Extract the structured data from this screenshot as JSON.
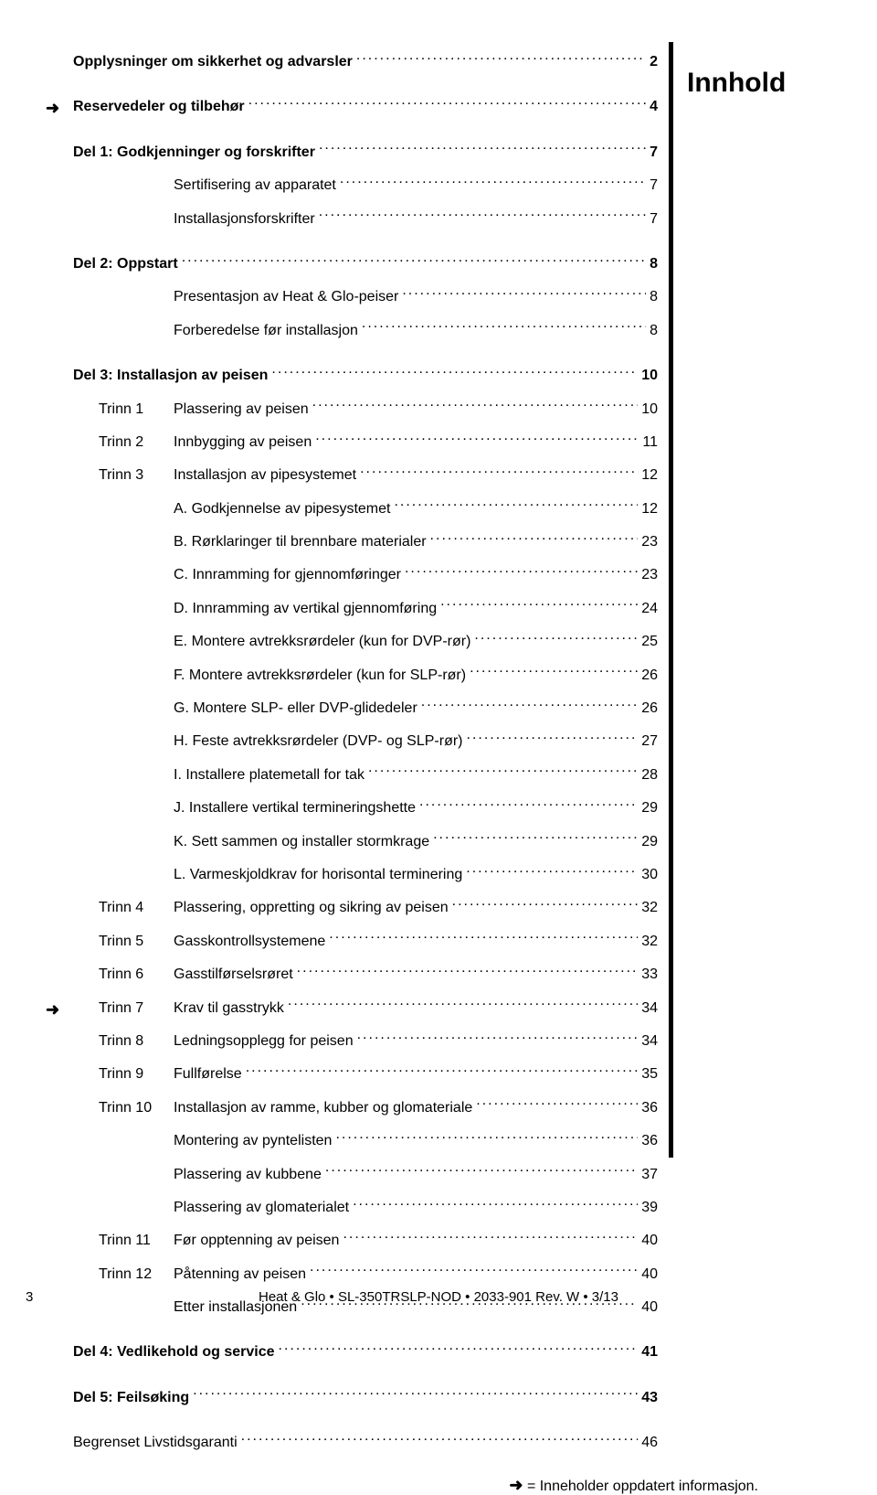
{
  "section_heading": "Innhold",
  "arrow_glyph": "➜",
  "toc": [
    {
      "type": "entry",
      "label": "Opplysninger om sikkerhet og advarsler",
      "page": "2",
      "bold": true,
      "arrow": false,
      "prefix": ""
    },
    {
      "type": "gap"
    },
    {
      "type": "entry",
      "label": "Reservedeler og tilbehør",
      "page": "4",
      "bold": true,
      "arrow": true,
      "prefix": ""
    },
    {
      "type": "gap"
    },
    {
      "type": "entry",
      "label": "Del 1: Godkjenninger og forskrifter",
      "page": "7",
      "bold": true,
      "arrow": false,
      "prefix": ""
    },
    {
      "type": "entry",
      "label": "Sertifisering av apparatet",
      "page": "7",
      "bold": false,
      "arrow": false,
      "prefix": "",
      "indent": true
    },
    {
      "type": "entry",
      "label": "Installasjonsforskrifter",
      "page": "7",
      "bold": false,
      "arrow": false,
      "prefix": "",
      "indent": true
    },
    {
      "type": "gap"
    },
    {
      "type": "entry",
      "label": "Del 2: Oppstart",
      "page": "8",
      "bold": true,
      "arrow": false,
      "prefix": ""
    },
    {
      "type": "entry",
      "label": "Presentasjon av Heat & Glo-peiser",
      "page": "8",
      "bold": false,
      "arrow": false,
      "prefix": "",
      "indent": true
    },
    {
      "type": "entry",
      "label": "Forberedelse før installasjon",
      "page": "8",
      "bold": false,
      "arrow": false,
      "prefix": "",
      "indent": true
    },
    {
      "type": "gap"
    },
    {
      "type": "entry",
      "label": "Del 3: Installasjon av peisen",
      "page": "10",
      "bold": true,
      "arrow": false,
      "prefix": ""
    },
    {
      "type": "entry",
      "label": "Plassering av peisen",
      "page": "10",
      "bold": false,
      "arrow": false,
      "prefix": "Trinn 1",
      "indent": true
    },
    {
      "type": "entry",
      "label": "Innbygging av peisen",
      "page": "11",
      "bold": false,
      "arrow": false,
      "prefix": "Trinn 2",
      "indent": true
    },
    {
      "type": "entry",
      "label": "Installasjon av pipesystemet",
      "page": "12",
      "bold": false,
      "arrow": false,
      "prefix": "Trinn 3",
      "indent": true
    },
    {
      "type": "entry",
      "label": "A. Godkjennelse av pipesystemet",
      "page": "12",
      "bold": false,
      "arrow": false,
      "prefix": "",
      "indent": true,
      "sub": true
    },
    {
      "type": "entry",
      "label": "B. Rørklaringer til brennbare materialer",
      "page": "23",
      "bold": false,
      "arrow": false,
      "prefix": "",
      "indent": true,
      "sub": true
    },
    {
      "type": "entry",
      "label": "C. Innramming for gjennomføringer",
      "page": "23",
      "bold": false,
      "arrow": false,
      "prefix": "",
      "indent": true,
      "sub": true
    },
    {
      "type": "entry",
      "label": "D. Innramming av vertikal gjennomføring",
      "page": "24",
      "bold": false,
      "arrow": false,
      "prefix": "",
      "indent": true,
      "sub": true
    },
    {
      "type": "entry",
      "label": "E. Montere avtrekksrørdeler (kun for DVP-rør)",
      "page": "25",
      "bold": false,
      "arrow": false,
      "prefix": "",
      "indent": true,
      "sub": true
    },
    {
      "type": "entry",
      "label": "F. Montere avtrekksrørdeler (kun for SLP-rør)",
      "page": "26",
      "bold": false,
      "arrow": false,
      "prefix": "",
      "indent": true,
      "sub": true
    },
    {
      "type": "entry",
      "label": "G. Montere SLP- eller DVP-glidedeler",
      "page": "26",
      "bold": false,
      "arrow": false,
      "prefix": "",
      "indent": true,
      "sub": true
    },
    {
      "type": "entry",
      "label": "H. Feste avtrekksrørdeler (DVP- og SLP-rør)",
      "page": "27",
      "bold": false,
      "arrow": false,
      "prefix": "",
      "indent": true,
      "sub": true
    },
    {
      "type": "entry",
      "label": "I. Installere platemetall for tak",
      "page": "28",
      "bold": false,
      "arrow": false,
      "prefix": "",
      "indent": true,
      "sub": true
    },
    {
      "type": "entry",
      "label": "J. Installere vertikal termineringshette",
      "page": "29",
      "bold": false,
      "arrow": false,
      "prefix": "",
      "indent": true,
      "sub": true
    },
    {
      "type": "entry",
      "label": "K. Sett sammen og installer stormkrage",
      "page": "29",
      "bold": false,
      "arrow": false,
      "prefix": "",
      "indent": true,
      "sub": true
    },
    {
      "type": "entry",
      "label": "L. Varmeskjoldkrav for horisontal terminering",
      "page": "30",
      "bold": false,
      "arrow": false,
      "prefix": "",
      "indent": true,
      "sub": true
    },
    {
      "type": "entry",
      "label": "Plassering, oppretting og sikring av peisen",
      "page": "32",
      "bold": false,
      "arrow": false,
      "prefix": "Trinn 4",
      "indent": true
    },
    {
      "type": "entry",
      "label": "Gasskontrollsystemene",
      "page": "32",
      "bold": false,
      "arrow": false,
      "prefix": "Trinn 5",
      "indent": true
    },
    {
      "type": "entry",
      "label": "Gasstilførselsrøret",
      "page": "33",
      "bold": false,
      "arrow": false,
      "prefix": "Trinn 6",
      "indent": true
    },
    {
      "type": "entry",
      "label": "Krav til gasstrykk",
      "page": "34",
      "bold": false,
      "arrow": true,
      "prefix": "Trinn 7",
      "indent": true
    },
    {
      "type": "entry",
      "label": "Ledningsopplegg for peisen",
      "page": "34",
      "bold": false,
      "arrow": false,
      "prefix": "Trinn 8",
      "indent": true
    },
    {
      "type": "entry",
      "label": "Fullførelse",
      "page": "35",
      "bold": false,
      "arrow": false,
      "prefix": "Trinn 9",
      "indent": true
    },
    {
      "type": "entry",
      "label": "Installasjon av ramme, kubber og glomateriale",
      "page": "36",
      "bold": false,
      "arrow": false,
      "prefix": "Trinn 10",
      "indent": true
    },
    {
      "type": "entry",
      "label": "Montering av pyntelisten",
      "page": "36",
      "bold": false,
      "arrow": false,
      "prefix": "",
      "indent": true,
      "sub": true
    },
    {
      "type": "entry",
      "label": "Plassering av kubbene",
      "page": "37",
      "bold": false,
      "arrow": false,
      "prefix": "",
      "indent": true,
      "sub": true
    },
    {
      "type": "entry",
      "label": "Plassering av glomaterialet",
      "page": "39",
      "bold": false,
      "arrow": false,
      "prefix": "",
      "indent": true,
      "sub": true
    },
    {
      "type": "entry",
      "label": "Før opptenning av peisen",
      "page": "40",
      "bold": false,
      "arrow": false,
      "prefix": "Trinn 11",
      "indent": true
    },
    {
      "type": "entry",
      "label": "Påtenning av peisen",
      "page": "40",
      "bold": false,
      "arrow": false,
      "prefix": "Trinn 12",
      "indent": true
    },
    {
      "type": "entry",
      "label": "Etter installasjonen",
      "page": "40",
      "bold": false,
      "arrow": false,
      "prefix": "",
      "indent": true,
      "sub": true
    },
    {
      "type": "gap"
    },
    {
      "type": "entry",
      "label": "Del 4: Vedlikehold og service",
      "page": "41",
      "bold": true,
      "arrow": false,
      "prefix": ""
    },
    {
      "type": "gap"
    },
    {
      "type": "entry",
      "label": "Del 5: Feilsøking",
      "page": "43",
      "bold": true,
      "arrow": false,
      "prefix": ""
    },
    {
      "type": "gap"
    },
    {
      "type": "entry",
      "label": "Begrenset Livstidsgaranti",
      "page": "46",
      "bold": false,
      "arrow": false,
      "prefix": ""
    }
  ],
  "footnote_text": "= Inneholder oppdatert informasjon.",
  "footer_text": "Heat & Glo  •  SL-350TRSLP-NOD  •  2033-901  Rev. W  •  3/13",
  "page_number": "3"
}
